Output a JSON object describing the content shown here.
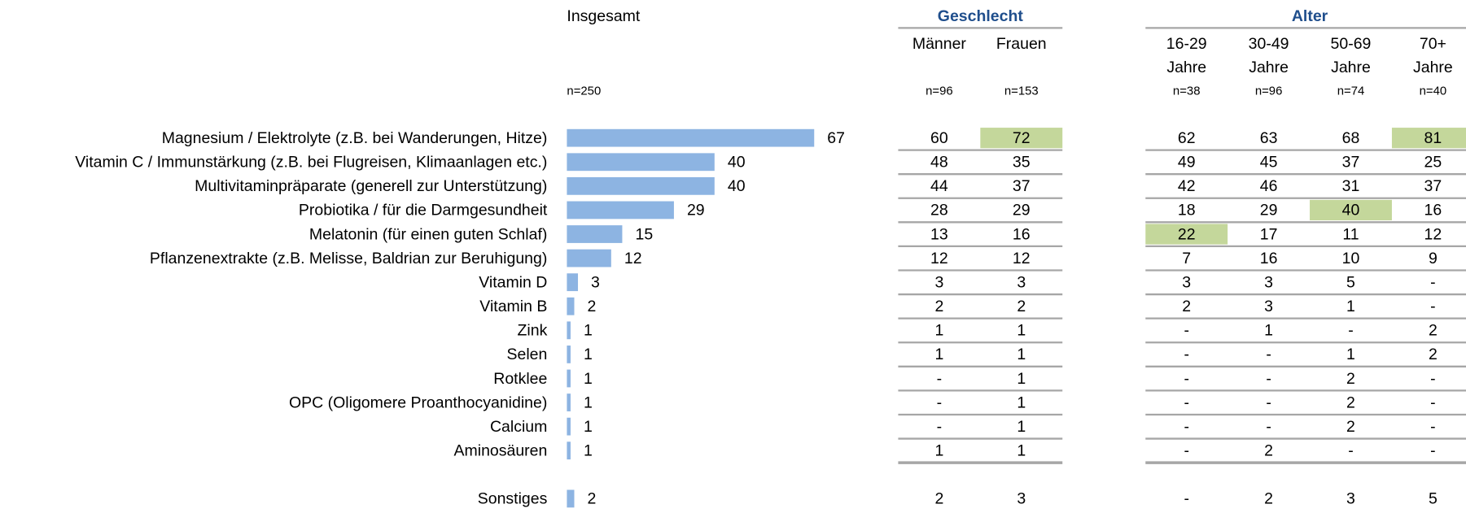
{
  "chart_data": {
    "type": "bar",
    "orientation": "horizontal",
    "title": "Insgesamt",
    "subtitle": "n=250",
    "color": "#8db4e2",
    "categories": [
      "Magnesium / Elektrolyte (z.B. bei Wanderungen, Hitze)",
      "Vitamin C / Immunstärkung (z.B. bei Flugreisen, Klimaanlagen etc.)",
      "Multivitaminpräparate (generell zur Unterstützung)",
      "Probiotika / für die Darmgesundheit",
      "Melatonin (für einen guten Schlaf)",
      "Pflanzenextrakte (z.B. Melisse, Baldrian zur Beruhigung)",
      "Vitamin D",
      "Vitamin B",
      "Zink",
      "Selen",
      "Rotklee",
      "OPC (Oligomere Proanthocyanidine)",
      "Calcium",
      "Aminosäuren",
      "Sonstiges"
    ],
    "values": [
      67,
      40,
      40,
      29,
      15,
      12,
      3,
      2,
      1,
      1,
      1,
      1,
      1,
      1,
      2
    ]
  },
  "table": {
    "highlight_color": "#c4d79b",
    "groups": [
      {
        "title": "Geschlecht",
        "columns": [
          {
            "label": [
              "Männer"
            ],
            "n": "n=96",
            "values": [
              60,
              48,
              44,
              28,
              13,
              12,
              3,
              2,
              1,
              1,
              "-",
              "-",
              "-",
              1,
              2
            ]
          },
          {
            "label": [
              "Frauen"
            ],
            "n": "n=153",
            "values": [
              72,
              35,
              37,
              29,
              16,
              12,
              3,
              2,
              1,
              1,
              1,
              1,
              1,
              1,
              3
            ],
            "highlight": [
              0
            ]
          }
        ]
      },
      {
        "title": "Alter",
        "columns": [
          {
            "label": [
              "16-29",
              "Jahre"
            ],
            "n": "n=38",
            "values": [
              62,
              49,
              42,
              18,
              22,
              7,
              3,
              2,
              "-",
              "-",
              "-",
              "-",
              "-",
              "-",
              "-"
            ],
            "highlight": [
              4
            ]
          },
          {
            "label": [
              "30-49",
              "Jahre"
            ],
            "n": "n=96",
            "values": [
              63,
              45,
              46,
              29,
              17,
              16,
              3,
              3,
              1,
              "-",
              "-",
              "-",
              "-",
              2,
              2
            ]
          },
          {
            "label": [
              "50-69",
              "Jahre"
            ],
            "n": "n=74",
            "values": [
              68,
              37,
              31,
              40,
              11,
              10,
              5,
              1,
              "-",
              1,
              2,
              2,
              2,
              "-",
              3
            ],
            "highlight": [
              3
            ]
          },
          {
            "label": [
              "70+",
              "Jahre"
            ],
            "n": "n=40",
            "values": [
              81,
              25,
              37,
              16,
              12,
              9,
              "-",
              "-",
              2,
              2,
              "-",
              "-",
              "-",
              "-",
              5
            ],
            "highlight": [
              0
            ]
          }
        ]
      }
    ]
  }
}
